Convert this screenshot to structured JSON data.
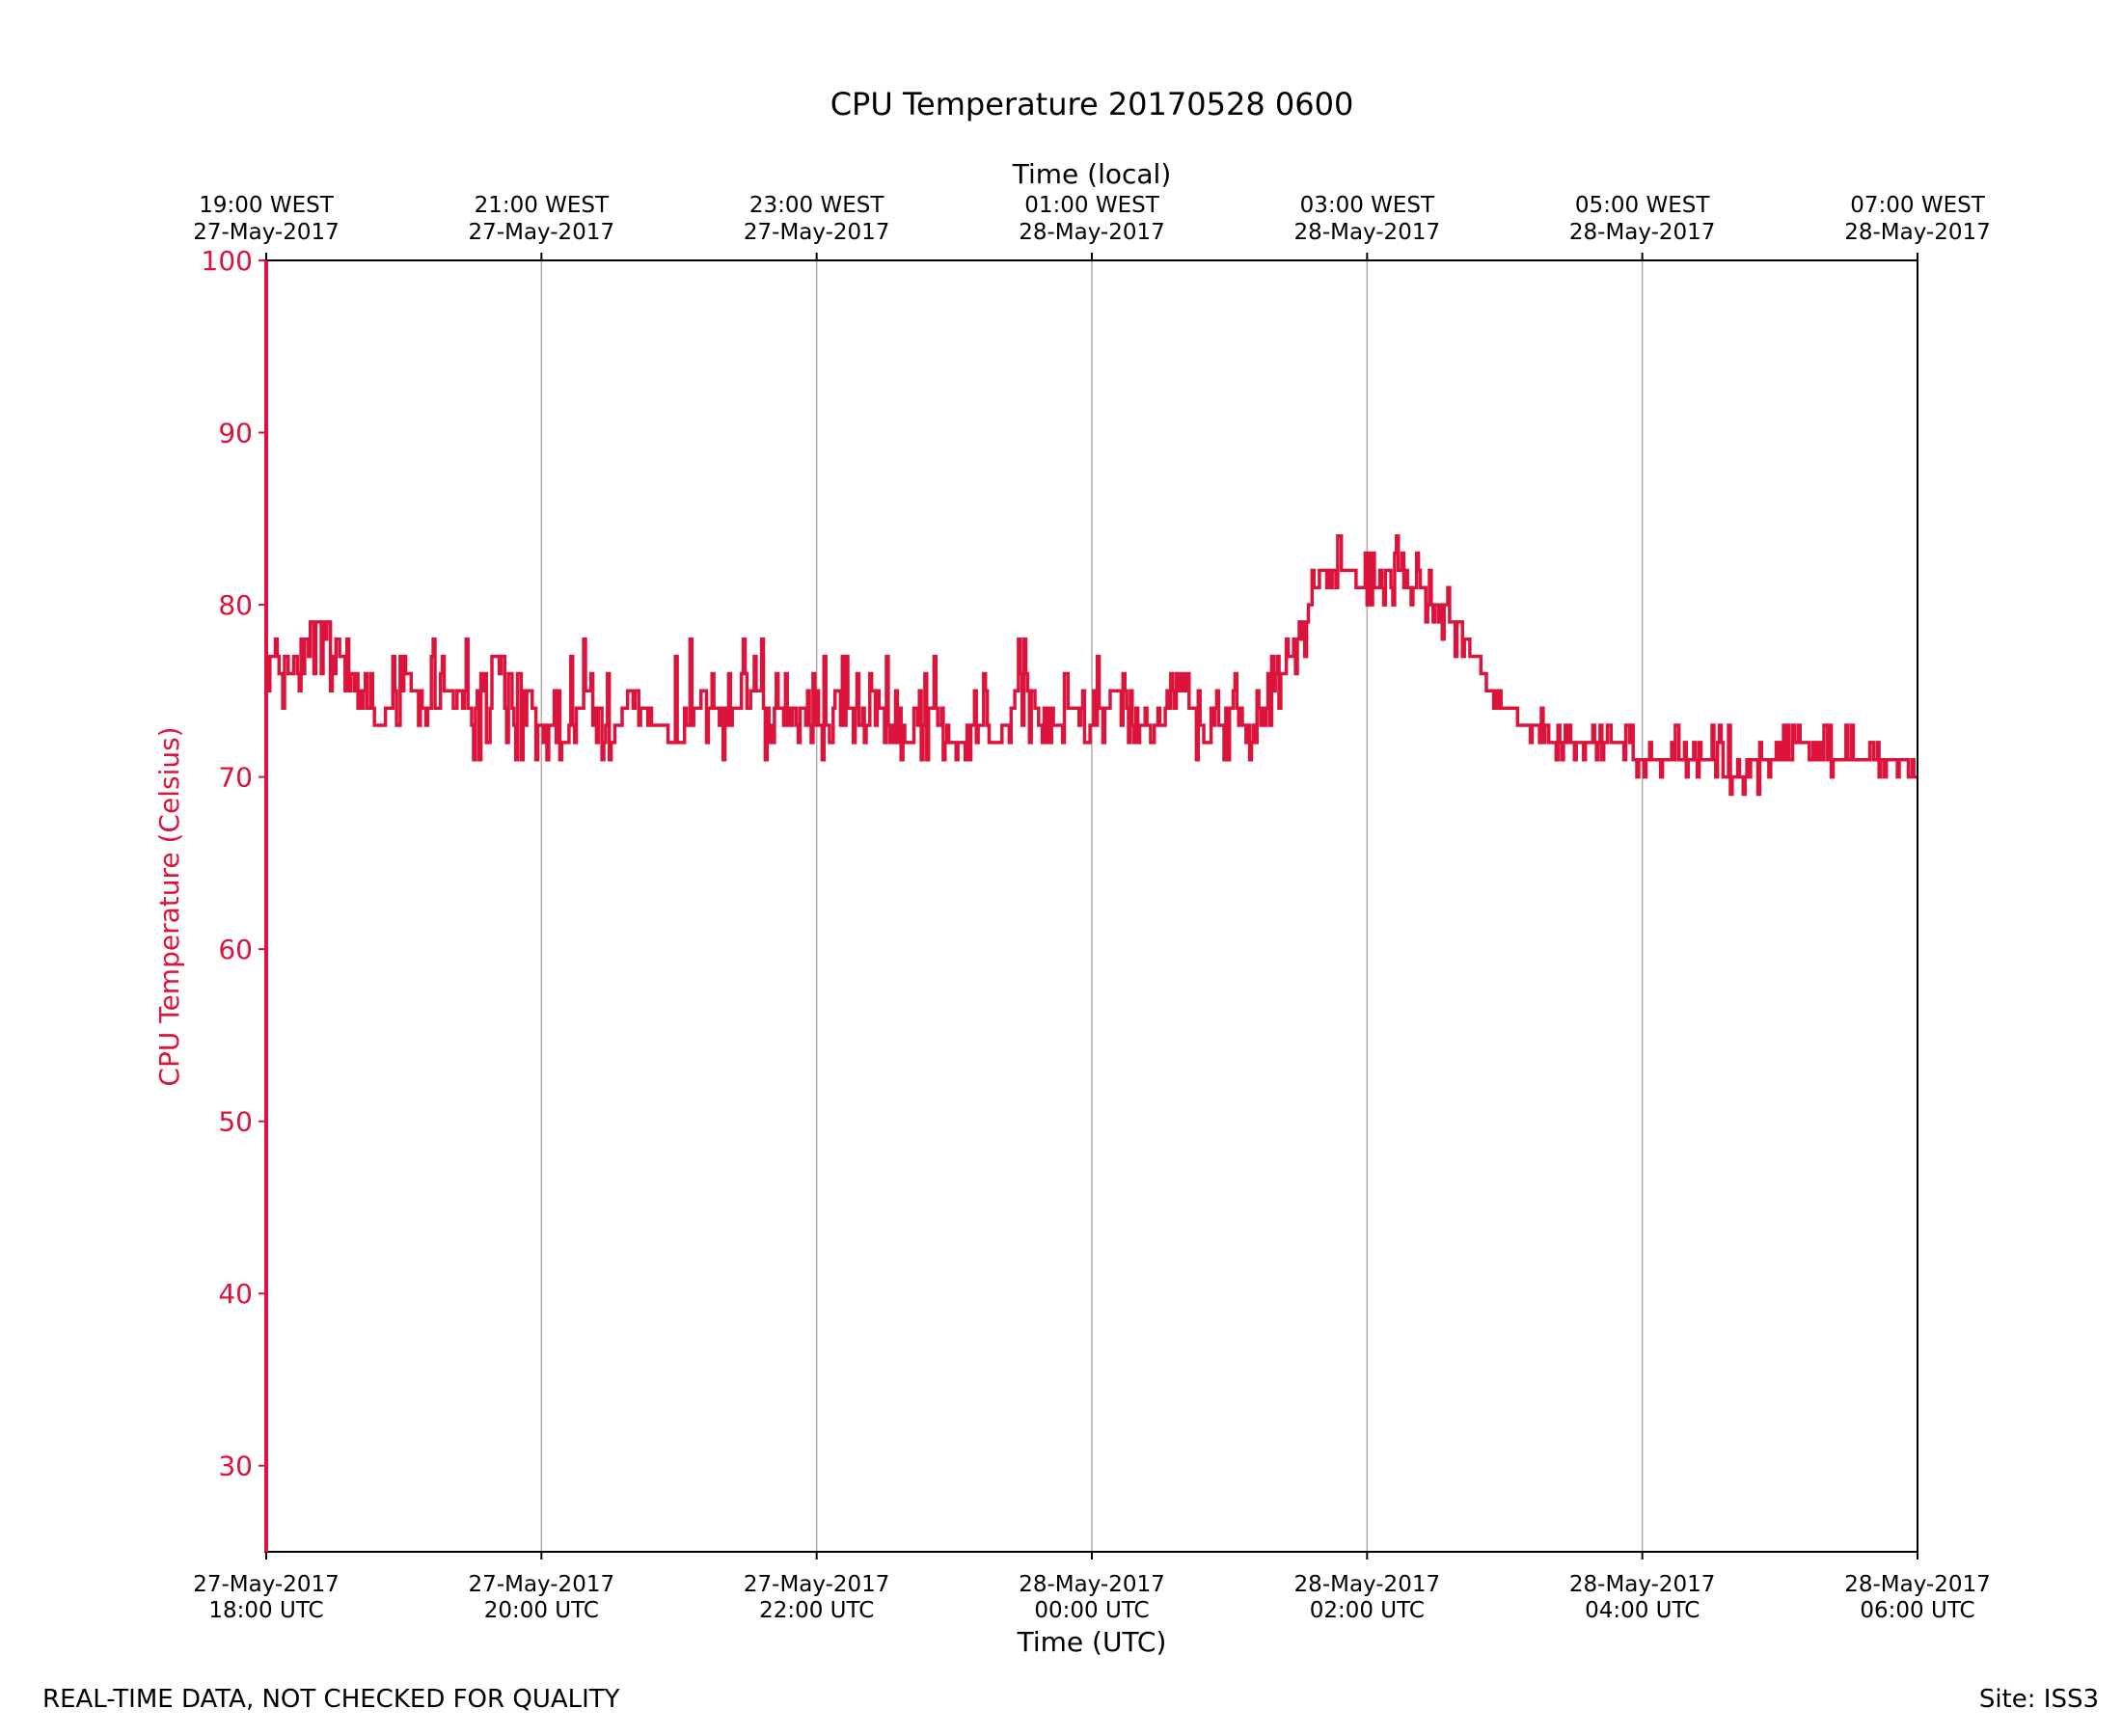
{
  "footer": {
    "quality_note": "REAL-TIME DATA, NOT CHECKED FOR QUALITY",
    "site": "Site: ISS3"
  },
  "chart_data": {
    "type": "line",
    "title": "CPU Temperature 20170528 0600",
    "xlabel": "Time (UTC)",
    "x2label": "Time (local)",
    "ylabel": "CPU Temperature (Celsius)",
    "ylim": [
      25,
      100
    ],
    "y_ticks": [
      30,
      40,
      50,
      60,
      70,
      80,
      90,
      100
    ],
    "xlim": [
      "2017-05-27 18:00 UTC",
      "2017-05-28 06:00 UTC"
    ],
    "grid": "vertical",
    "colors": {
      "series": "#dc143c",
      "grid": "#b0b0b0",
      "axis": "#000000"
    },
    "x_ticks_utc": [
      {
        "date": "27-May-2017",
        "time": "18:00 UTC"
      },
      {
        "date": "27-May-2017",
        "time": "20:00 UTC"
      },
      {
        "date": "27-May-2017",
        "time": "22:00 UTC"
      },
      {
        "date": "28-May-2017",
        "time": "00:00 UTC"
      },
      {
        "date": "28-May-2017",
        "time": "02:00 UTC"
      },
      {
        "date": "28-May-2017",
        "time": "04:00 UTC"
      },
      {
        "date": "28-May-2017",
        "time": "06:00 UTC"
      }
    ],
    "x_ticks_local": [
      {
        "time": "19:00 WEST",
        "date": "27-May-2017"
      },
      {
        "time": "21:00 WEST",
        "date": "27-May-2017"
      },
      {
        "time": "23:00 WEST",
        "date": "27-May-2017"
      },
      {
        "time": "01:00 WEST",
        "date": "28-May-2017"
      },
      {
        "time": "03:00 WEST",
        "date": "28-May-2017"
      },
      {
        "time": "05:00 WEST",
        "date": "28-May-2017"
      },
      {
        "time": "07:00 WEST",
        "date": "28-May-2017"
      }
    ],
    "series": [
      {
        "x": [
          "2017-05-27 18:00 UTC",
          "2017-05-27 18:10 UTC",
          "2017-05-27 18:20 UTC",
          "2017-05-27 18:30 UTC",
          "2017-05-27 18:40 UTC",
          "2017-05-27 18:50 UTC",
          "2017-05-27 19:00 UTC",
          "2017-05-27 19:10 UTC",
          "2017-05-27 19:20 UTC",
          "2017-05-27 19:30 UTC",
          "2017-05-27 19:40 UTC",
          "2017-05-27 19:50 UTC",
          "2017-05-27 20:00 UTC",
          "2017-05-27 20:10 UTC",
          "2017-05-27 20:20 UTC",
          "2017-05-27 20:30 UTC",
          "2017-05-27 20:40 UTC",
          "2017-05-27 20:50 UTC",
          "2017-05-27 21:00 UTC",
          "2017-05-27 21:10 UTC",
          "2017-05-27 21:20 UTC",
          "2017-05-27 21:30 UTC",
          "2017-05-27 21:40 UTC",
          "2017-05-27 21:50 UTC",
          "2017-05-27 22:00 UTC",
          "2017-05-27 22:10 UTC",
          "2017-05-27 22:20 UTC",
          "2017-05-27 22:30 UTC",
          "2017-05-27 22:40 UTC",
          "2017-05-27 22:50 UTC",
          "2017-05-27 23:00 UTC",
          "2017-05-27 23:10 UTC",
          "2017-05-27 23:20 UTC",
          "2017-05-27 23:30 UTC",
          "2017-05-27 23:40 UTC",
          "2017-05-27 23:50 UTC",
          "2017-05-28 00:00 UTC",
          "2017-05-28 00:10 UTC",
          "2017-05-28 00:20 UTC",
          "2017-05-28 00:30 UTC",
          "2017-05-28 00:40 UTC",
          "2017-05-28 00:50 UTC",
          "2017-05-28 01:00 UTC",
          "2017-05-28 01:10 UTC",
          "2017-05-28 01:20 UTC",
          "2017-05-28 01:30 UTC",
          "2017-05-28 01:40 UTC",
          "2017-05-28 01:50 UTC",
          "2017-05-28 02:00 UTC",
          "2017-05-28 02:10 UTC",
          "2017-05-28 02:20 UTC",
          "2017-05-28 02:30 UTC",
          "2017-05-28 02:40 UTC",
          "2017-05-28 02:50 UTC",
          "2017-05-28 03:00 UTC",
          "2017-05-28 03:10 UTC",
          "2017-05-28 03:20 UTC",
          "2017-05-28 03:30 UTC",
          "2017-05-28 03:40 UTC",
          "2017-05-28 03:50 UTC",
          "2017-05-28 04:00 UTC",
          "2017-05-28 04:10 UTC",
          "2017-05-28 04:20 UTC",
          "2017-05-28 04:30 UTC",
          "2017-05-28 04:40 UTC",
          "2017-05-28 04:50 UTC",
          "2017-05-28 05:00 UTC",
          "2017-05-28 05:10 UTC",
          "2017-05-28 05:20 UTC",
          "2017-05-28 05:30 UTC",
          "2017-05-28 05:40 UTC",
          "2017-05-28 05:50 UTC",
          "2017-05-28 06:00 UTC"
        ],
        "y": [
          77,
          76,
          79,
          78,
          75,
          73,
          76,
          74,
          75,
          74,
          77,
          76,
          73,
          72,
          75,
          72,
          75,
          73,
          72,
          75,
          73,
          75,
          74,
          74,
          73,
          75,
          73,
          74,
          72,
          74,
          72,
          73,
          72,
          76,
          72,
          74,
          73,
          75,
          73,
          73,
          75,
          72,
          74,
          73,
          75,
          78,
          82,
          82,
          81,
          82,
          81,
          80,
          79,
          76,
          74,
          73,
          72,
          72,
          72,
          72,
          71,
          71,
          71,
          71,
          70,
          71,
          71,
          72,
          71,
          71,
          71,
          71,
          70
        ],
        "y_min": [
          74,
          74,
          75,
          74,
          73,
          73,
          73,
          72,
          73,
          71,
          71,
          70,
          71,
          70,
          71,
          71,
          72,
          71,
          72,
          72,
          71,
          72,
          71,
          72,
          71,
          72,
          72,
          72,
          70,
          71,
          71,
          71,
          70,
          71,
          71,
          72,
          72,
          72,
          71,
          71,
          71,
          70,
          70,
          71,
          73,
          76,
          80,
          81,
          80,
          79,
          79,
          78,
          77,
          74,
          73,
          72,
          71,
          71,
          71,
          71,
          70,
          70,
          70,
          70,
          69,
          69,
          70,
          70,
          70,
          70,
          70,
          70,
          69
        ],
        "y_max": [
          79,
          78,
          80,
          80,
          77,
          76,
          78,
          79,
          80,
          78,
          78,
          78,
          74,
          77,
          79,
          77,
          78,
          76,
          78,
          78,
          76,
          79,
          78,
          77,
          76,
          78,
          76,
          78,
          74,
          78,
          74,
          76,
          75,
          79,
          75,
          76,
          76,
          79,
          76,
          75,
          77,
          75,
          77,
          75,
          78,
          79,
          84,
          84,
          84,
          84,
          83,
          82,
          81,
          77,
          77,
          75,
          74,
          74,
          74,
          74,
          73,
          74,
          74,
          73,
          73,
          74,
          73,
          74,
          73,
          73,
          73,
          72,
          71
        ]
      }
    ]
  }
}
